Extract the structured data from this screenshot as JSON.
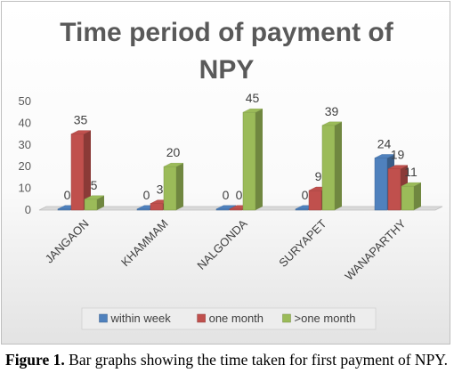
{
  "chart_data": {
    "type": "bar",
    "style": "3d-clustered-column",
    "title_lines": [
      "Time period of payment of",
      "NPY"
    ],
    "categories": [
      "JANGAON",
      "KHAMMAM",
      "NALGONDA",
      "SURYAPET",
      "WANAPARTHY"
    ],
    "series": [
      {
        "name": "within week",
        "values": [
          0,
          0,
          0,
          0,
          24
        ],
        "color": "#4f81bd"
      },
      {
        "name": "one month",
        "values": [
          35,
          3,
          0,
          9,
          19
        ],
        "color": "#c0504d"
      },
      {
        "name": ">one month",
        "values": [
          5,
          20,
          45,
          39,
          11
        ],
        "color": "#9bbb59"
      }
    ],
    "ylim": [
      0,
      50
    ],
    "yticks": [
      0,
      10,
      20,
      30,
      40,
      50
    ],
    "grid": false,
    "data_labels": true,
    "legend_position": "bottom"
  },
  "caption": {
    "label": "Figure 1.",
    "text": " Bar graphs showing the time taken for first payment of NPY."
  }
}
